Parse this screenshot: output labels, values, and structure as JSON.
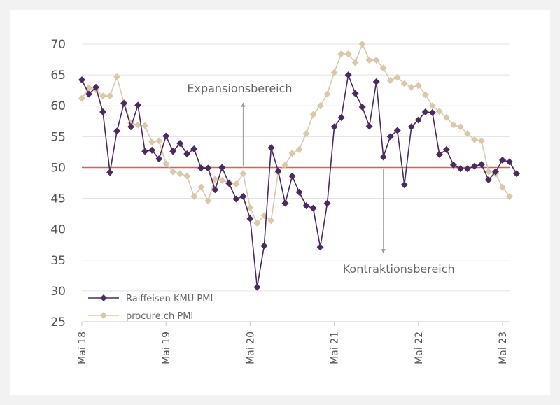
{
  "chart_data": {
    "type": "line",
    "title": "",
    "xlabel": "",
    "ylabel": "",
    "ylim": [
      25,
      70
    ],
    "yticks": [
      "25",
      "30",
      "35",
      "40",
      "45",
      "50",
      "55",
      "60",
      "65",
      "70"
    ],
    "x_tick_labels": [
      "Mai 18",
      "Mai 19",
      "Mai 20",
      "Mai 21",
      "Mai 22",
      "Mai 23"
    ],
    "x_tick_months": [
      0,
      12,
      24,
      36,
      48,
      60
    ],
    "x_range": [
      0,
      61
    ],
    "grid": "horizontal",
    "threshold": {
      "value": 50,
      "color": "#e8575a"
    },
    "annotations": [
      {
        "text": "Expansionsbereich",
        "arrow": "up",
        "x_month": 23
      },
      {
        "text": "Kontraktionsbereich",
        "arrow": "down",
        "x_month": 43
      }
    ],
    "legend_position": "bottom-left",
    "series": [
      {
        "name": "Raiffeisen KMU PMI",
        "color": "#4b2a5c",
        "marker": "diamond",
        "values": [
          64.2,
          61.9,
          63.0,
          59.0,
          49.2,
          55.9,
          60.4,
          56.6,
          60.1,
          52.6,
          52.8,
          51.4,
          55.1,
          52.6,
          53.9,
          52.2,
          53.0,
          49.9,
          49.9,
          46.4,
          50.0,
          47.4,
          44.9,
          45.3,
          41.7,
          30.6,
          37.3,
          53.2,
          49.4,
          44.2,
          48.6,
          46.0,
          43.8,
          43.4,
          37.1,
          44.2,
          56.6,
          58.1,
          65.0,
          62.0,
          59.8,
          56.7,
          63.9,
          51.7,
          55.0,
          56.0,
          47.2,
          56.6,
          57.7,
          59.0,
          58.9,
          52.1,
          52.9,
          50.4,
          49.8,
          49.8,
          50.2,
          50.5,
          48.0,
          49.3,
          51.2,
          50.9,
          49.0
        ]
      },
      {
        "name": "procure.ch PMI",
        "color": "#d8c9ad",
        "marker": "diamond",
        "values": [
          61.2,
          62.9,
          62.6,
          61.6,
          61.6,
          64.7,
          60.5,
          57.2,
          56.9,
          56.8,
          54.1,
          54.3,
          50.6,
          49.3,
          49.0,
          48.6,
          45.3,
          46.8,
          44.6,
          48.1,
          47.9,
          47.6,
          47.3,
          49.0,
          43.5,
          41.0,
          42.2,
          41.4,
          49.2,
          50.4,
          52.3,
          52.9,
          55.5,
          58.6,
          60.0,
          61.9,
          65.4,
          68.4,
          68.4,
          67.0,
          70.0,
          67.4,
          67.4,
          66.1,
          64.1,
          64.6,
          63.6,
          63.0,
          63.3,
          61.8,
          60.0,
          59.1,
          58.1,
          56.9,
          56.6,
          55.5,
          54.5,
          54.3,
          49.3,
          49.0,
          46.8,
          45.3
        ]
      }
    ]
  }
}
